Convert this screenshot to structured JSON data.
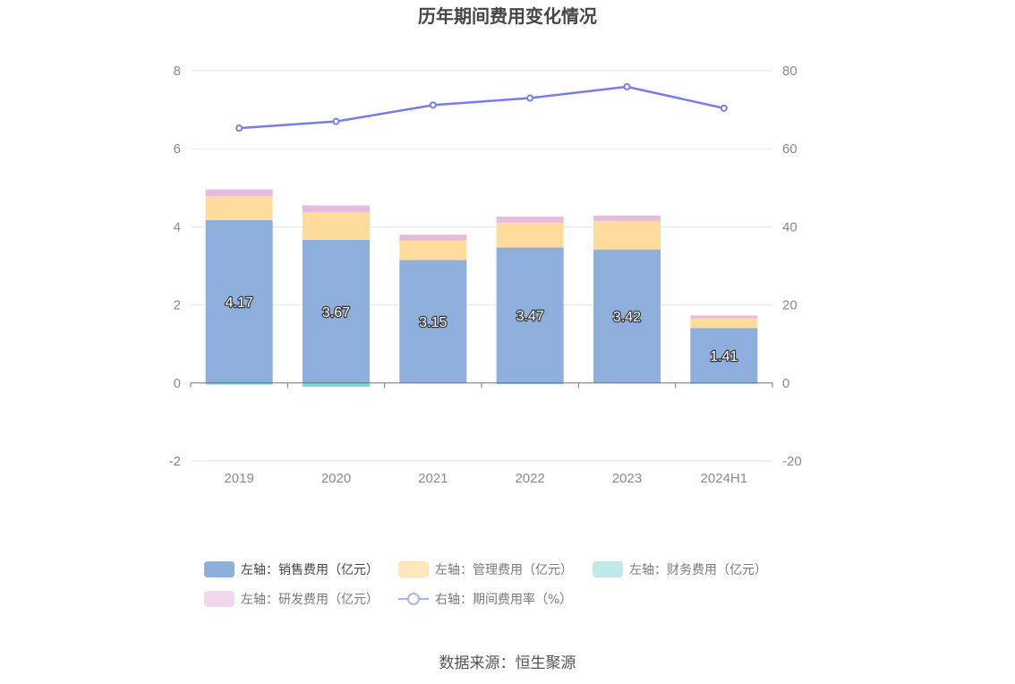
{
  "chart_data": {
    "type": "bar",
    "title": "历年期间费用变化情况",
    "categories": [
      "2019",
      "2020",
      "2021",
      "2022",
      "2023",
      "2024H1"
    ],
    "left_axis": {
      "ticks": [
        "-2",
        "0",
        "2",
        "4",
        "6",
        "8"
      ],
      "ylim": [
        -2,
        8
      ]
    },
    "right_axis": {
      "ticks": [
        "-20",
        "0",
        "20",
        "40",
        "60",
        "80"
      ],
      "ylim": [
        -20,
        80
      ]
    },
    "grid": true,
    "legend_position": "bottom",
    "series": [
      {
        "name": "左轴：销售费用（亿元）",
        "axis": "left",
        "kind": "bar",
        "color": "#8eaedb",
        "values": [
          4.17,
          3.67,
          3.15,
          3.47,
          3.42,
          1.41
        ],
        "labels": [
          "4.17",
          "3.67",
          "3.15",
          "3.47",
          "3.42",
          "1.41"
        ]
      },
      {
        "name": "左轴：管理费用（亿元）",
        "axis": "left",
        "kind": "bar",
        "color": "#ffdb9c",
        "values": [
          0.62,
          0.7,
          0.5,
          0.64,
          0.73,
          0.25
        ]
      },
      {
        "name": "左轴：财务费用（亿元）",
        "axis": "left",
        "kind": "bar",
        "color": "#7ed6d6",
        "values": [
          -0.04,
          -0.1,
          -0.01,
          -0.03,
          -0.01,
          -0.02
        ]
      },
      {
        "name": "左轴：研发费用（亿元）",
        "axis": "left",
        "kind": "bar",
        "color": "#e6bbdc",
        "values": [
          0.17,
          0.18,
          0.15,
          0.15,
          0.14,
          0.07
        ]
      },
      {
        "name": "右轴：期间费用率（%）",
        "axis": "right",
        "kind": "line",
        "color": "#777de6",
        "values": [
          65.3,
          67.0,
          71.2,
          73.0,
          75.9,
          70.4
        ]
      }
    ],
    "legend_swatch_colors": [
      "#8eaedb",
      "#ffe7bd",
      "#bfe8e8",
      "#f0d7eb",
      "#b0b3ee"
    ]
  },
  "legend": {
    "items": [
      "左轴：销售费用（亿元）",
      "左轴：管理费用（亿元）",
      "左轴：财务费用（亿元）",
      "左轴：研发费用（亿元）",
      "右轴：期间费用率（%）"
    ]
  },
  "source": "数据来源：恒生聚源"
}
